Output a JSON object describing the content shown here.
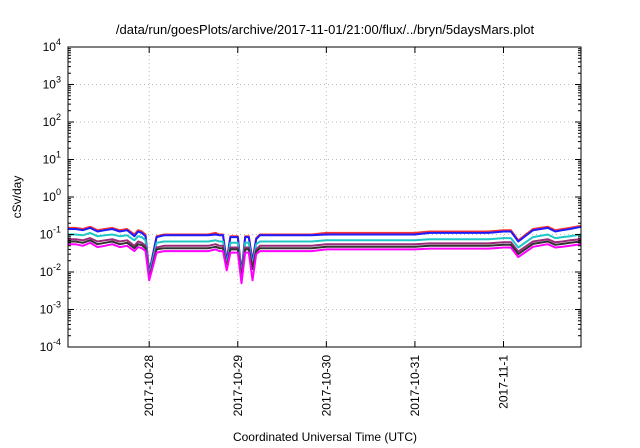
{
  "chart_data": {
    "type": "line",
    "title": "/data/run/goesPlots/archive/2017-11-01/21:00/flux/../bryn/5daysMars.plot",
    "xlabel": "Coordinated Universal Time (UTC)",
    "ylabel": "cSv/day",
    "y_scale": "log",
    "ylim": [
      0.0001,
      10000
    ],
    "xlim": [
      "2017-10-27T02:00",
      "2017-11-01T21:00"
    ],
    "grid": true,
    "legend": "none",
    "x_ticks": [
      "2017-10-28",
      "2017-10-29",
      "2017-10-30",
      "2017-10-31",
      "2017-11-1"
    ],
    "y_ticks": [
      {
        "value": 0.0001,
        "base": "10",
        "exp": "-4"
      },
      {
        "value": 0.001,
        "base": "10",
        "exp": "-3"
      },
      {
        "value": 0.01,
        "base": "10",
        "exp": "-2"
      },
      {
        "value": 0.1,
        "base": "10",
        "exp": "-1"
      },
      {
        "value": 1,
        "base": "10",
        "exp": "0"
      },
      {
        "value": 10,
        "base": "10",
        "exp": "1"
      },
      {
        "value": 100,
        "base": "10",
        "exp": "2"
      },
      {
        "value": 1000,
        "base": "10",
        "exp": "3"
      },
      {
        "value": 10000,
        "base": "10",
        "exp": "4"
      }
    ],
    "x": [
      "2017-10-27T02:00",
      "2017-10-27T04:00",
      "2017-10-27T06:00",
      "2017-10-27T08:00",
      "2017-10-27T10:00",
      "2017-10-27T12:00",
      "2017-10-27T14:00",
      "2017-10-27T16:00",
      "2017-10-27T18:00",
      "2017-10-27T20:00",
      "2017-10-27T21:00",
      "2017-10-27T22:00",
      "2017-10-27T23:00",
      "2017-10-28T00:00",
      "2017-10-28T02:00",
      "2017-10-28T04:00",
      "2017-10-28T06:00",
      "2017-10-28T08:00",
      "2017-10-28T10:00",
      "2017-10-28T12:00",
      "2017-10-28T14:00",
      "2017-10-28T16:00",
      "2017-10-28T18:00",
      "2017-10-28T19:00",
      "2017-10-28T20:00",
      "2017-10-28T21:00",
      "2017-10-28T22:00",
      "2017-10-29T00:00",
      "2017-10-29T01:00",
      "2017-10-29T02:00",
      "2017-10-29T03:00",
      "2017-10-29T04:00",
      "2017-10-29T05:00",
      "2017-10-29T06:00",
      "2017-10-29T08:00",
      "2017-10-29T12:00",
      "2017-10-29T16:00",
      "2017-10-29T20:00",
      "2017-10-30T00:00",
      "2017-10-30T04:00",
      "2017-10-30T08:00",
      "2017-10-30T12:00",
      "2017-10-30T16:00",
      "2017-10-30T20:00",
      "2017-10-31T00:00",
      "2017-10-31T04:00",
      "2017-10-31T08:00",
      "2017-10-31T12:00",
      "2017-10-31T16:00",
      "2017-10-31T20:00",
      "2017-11-01T00:00",
      "2017-11-01T02:00",
      "2017-11-01T04:00",
      "2017-11-01T08:00",
      "2017-11-01T12:00",
      "2017-11-01T14:00",
      "2017-11-01T16:00",
      "2017-11-01T18:00",
      "2017-11-01T21:00"
    ],
    "series": [
      {
        "color": "#ff3030",
        "values": [
          0.15,
          0.15,
          0.14,
          0.16,
          0.13,
          0.14,
          0.15,
          0.13,
          0.14,
          0.1,
          0.13,
          0.12,
          0.1,
          0.01,
          0.09,
          0.1,
          0.1,
          0.1,
          0.1,
          0.1,
          0.1,
          0.1,
          0.11,
          0.1,
          0.1,
          0.02,
          0.09,
          0.09,
          0.01,
          0.09,
          0.09,
          0.02,
          0.08,
          0.1,
          0.1,
          0.1,
          0.1,
          0.1,
          0.11,
          0.11,
          0.11,
          0.11,
          0.11,
          0.11,
          0.11,
          0.12,
          0.12,
          0.12,
          0.12,
          0.12,
          0.13,
          0.13,
          0.07,
          0.14,
          0.16,
          0.13,
          0.14,
          0.15,
          0.17
        ]
      },
      {
        "color": "#1c1cff",
        "values": [
          0.14,
          0.14,
          0.13,
          0.15,
          0.12,
          0.13,
          0.14,
          0.12,
          0.13,
          0.09,
          0.12,
          0.11,
          0.09,
          0.009,
          0.085,
          0.095,
          0.095,
          0.095,
          0.095,
          0.095,
          0.095,
          0.095,
          0.1,
          0.095,
          0.095,
          0.018,
          0.085,
          0.085,
          0.009,
          0.085,
          0.085,
          0.018,
          0.075,
          0.095,
          0.095,
          0.095,
          0.095,
          0.095,
          0.1,
          0.1,
          0.1,
          0.1,
          0.1,
          0.1,
          0.1,
          0.11,
          0.11,
          0.11,
          0.11,
          0.11,
          0.12,
          0.12,
          0.065,
          0.13,
          0.15,
          0.12,
          0.13,
          0.14,
          0.16
        ]
      },
      {
        "color": "#1fc7c7",
        "values": [
          0.1,
          0.1,
          0.095,
          0.11,
          0.09,
          0.095,
          0.1,
          0.09,
          0.095,
          0.07,
          0.09,
          0.085,
          0.07,
          0.008,
          0.06,
          0.065,
          0.065,
          0.065,
          0.065,
          0.065,
          0.065,
          0.065,
          0.07,
          0.065,
          0.065,
          0.015,
          0.06,
          0.06,
          0.008,
          0.06,
          0.06,
          0.015,
          0.055,
          0.065,
          0.065,
          0.065,
          0.065,
          0.065,
          0.07,
          0.07,
          0.07,
          0.07,
          0.07,
          0.07,
          0.07,
          0.075,
          0.075,
          0.075,
          0.075,
          0.075,
          0.08,
          0.08,
          0.045,
          0.085,
          0.1,
          0.08,
          0.085,
          0.09,
          0.1
        ]
      },
      {
        "color": "#9a2a7a",
        "values": [
          0.075,
          0.075,
          0.07,
          0.08,
          0.065,
          0.07,
          0.075,
          0.065,
          0.07,
          0.05,
          0.065,
          0.06,
          0.05,
          0.007,
          0.045,
          0.05,
          0.05,
          0.05,
          0.05,
          0.05,
          0.05,
          0.05,
          0.055,
          0.05,
          0.05,
          0.013,
          0.045,
          0.045,
          0.007,
          0.045,
          0.045,
          0.013,
          0.04,
          0.05,
          0.05,
          0.05,
          0.05,
          0.05,
          0.055,
          0.055,
          0.055,
          0.055,
          0.055,
          0.055,
          0.055,
          0.058,
          0.058,
          0.058,
          0.058,
          0.058,
          0.062,
          0.062,
          0.035,
          0.065,
          0.075,
          0.062,
          0.065,
          0.07,
          0.075
        ]
      },
      {
        "color": "#333333",
        "values": [
          0.065,
          0.065,
          0.06,
          0.07,
          0.055,
          0.06,
          0.065,
          0.055,
          0.06,
          0.043,
          0.055,
          0.052,
          0.043,
          0.0065,
          0.04,
          0.043,
          0.043,
          0.043,
          0.043,
          0.043,
          0.043,
          0.043,
          0.047,
          0.043,
          0.043,
          0.012,
          0.04,
          0.04,
          0.0065,
          0.04,
          0.04,
          0.012,
          0.035,
          0.043,
          0.043,
          0.043,
          0.043,
          0.043,
          0.047,
          0.047,
          0.047,
          0.047,
          0.047,
          0.047,
          0.047,
          0.05,
          0.05,
          0.05,
          0.05,
          0.05,
          0.053,
          0.053,
          0.03,
          0.056,
          0.065,
          0.053,
          0.056,
          0.06,
          0.065
        ]
      },
      {
        "color": "#ff00ff",
        "values": [
          0.055,
          0.055,
          0.05,
          0.06,
          0.046,
          0.05,
          0.055,
          0.046,
          0.05,
          0.036,
          0.046,
          0.043,
          0.036,
          0.006,
          0.033,
          0.036,
          0.036,
          0.036,
          0.036,
          0.036,
          0.036,
          0.036,
          0.04,
          0.036,
          0.036,
          0.011,
          0.033,
          0.033,
          0.005,
          0.033,
          0.033,
          0.006,
          0.03,
          0.036,
          0.036,
          0.036,
          0.036,
          0.036,
          0.04,
          0.04,
          0.04,
          0.04,
          0.04,
          0.04,
          0.04,
          0.042,
          0.042,
          0.042,
          0.042,
          0.042,
          0.045,
          0.045,
          0.025,
          0.047,
          0.055,
          0.045,
          0.047,
          0.05,
          0.055
        ]
      }
    ]
  }
}
